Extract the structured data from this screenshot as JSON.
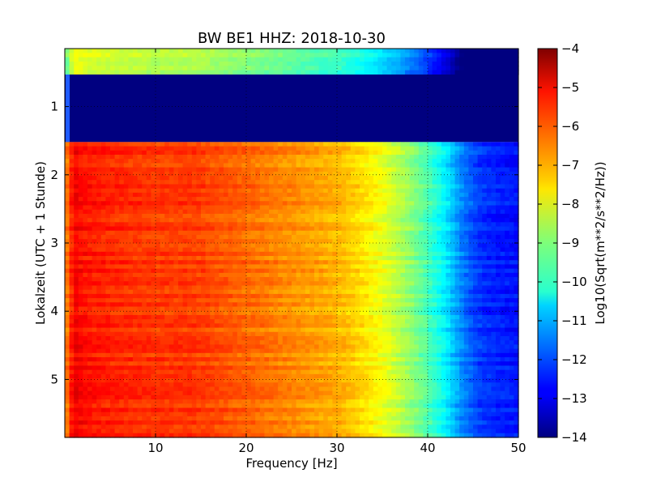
{
  "chart_data": {
    "type": "heatmap",
    "title": "BW BE1 HHZ: 2018-10-30",
    "xlabel": "Frequency [Hz]",
    "ylabel": "Lokalzeit (UTC + 1 Stunde)",
    "xlim": [
      0,
      50
    ],
    "ylim": [
      5.85,
      0.15
    ],
    "x_ticks": [
      10,
      20,
      30,
      40,
      50
    ],
    "y_ticks": [
      1,
      2,
      3,
      4,
      5
    ],
    "grid": true,
    "colormap": "jet",
    "colorbar": {
      "label": "Log10(Sqrt(m**2/s**2/Hz))",
      "min": -14,
      "max": -4,
      "ticks": [
        -4,
        -5,
        -6,
        -7,
        -8,
        -9,
        -10,
        -11,
        -12,
        -13,
        -14
      ]
    },
    "freq_profile": {
      "freq_hz": [
        0.3,
        1,
        2,
        5,
        10,
        14,
        18,
        22,
        26,
        30,
        32,
        35,
        38,
        40,
        42,
        44,
        46,
        48,
        50
      ],
      "level": [
        -6.4,
        -5.1,
        -5.4,
        -5.6,
        -5.8,
        -5.8,
        -6.1,
        -6.4,
        -6.7,
        -7.0,
        -7.3,
        -7.9,
        -8.8,
        -9.5,
        -10.4,
        -11.6,
        -12.3,
        -12.5,
        -12.6
      ]
    },
    "segments": [
      {
        "time_start": 0.15,
        "time_end": 0.53,
        "state": "reduced",
        "level_offset": -2.6
      },
      {
        "time_start": 0.53,
        "time_end": 1.52,
        "state": "no_data",
        "level": -14
      },
      {
        "time_start": 1.52,
        "time_end": 5.85,
        "state": "recording",
        "level_offset": 0
      }
    ]
  }
}
